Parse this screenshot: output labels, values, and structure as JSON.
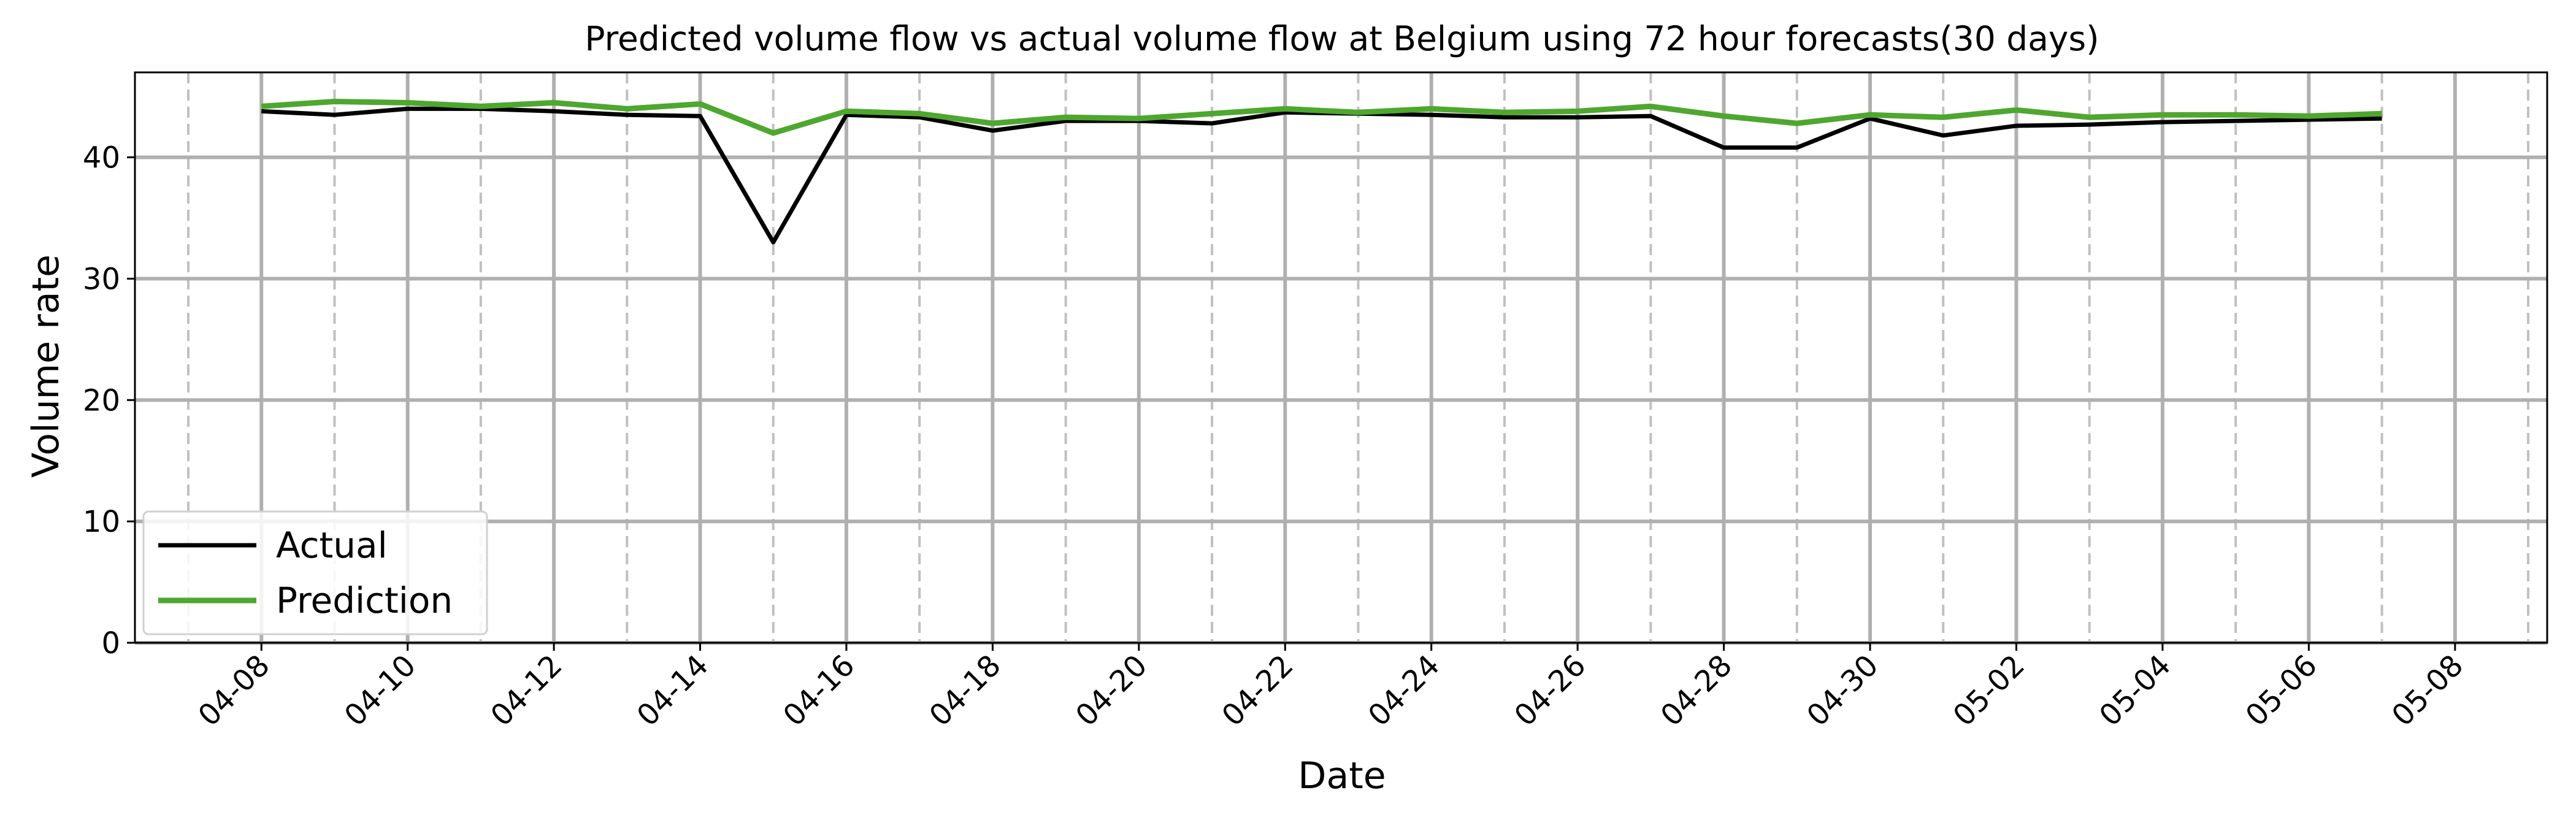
{
  "chart_data": {
    "type": "line",
    "title": "Predicted volume flow vs actual volume flow at Belgium using 72 hour forecasts(30 days)",
    "x_label": "Date",
    "y_label": "Volume rate",
    "x": [
      "04-08",
      "04-09",
      "04-10",
      "04-11",
      "04-12",
      "04-13",
      "04-14",
      "04-15",
      "04-16",
      "04-17",
      "04-18",
      "04-19",
      "04-20",
      "04-21",
      "04-22",
      "04-23",
      "04-24",
      "04-25",
      "04-26",
      "04-27",
      "04-28",
      "04-29",
      "04-30",
      "05-01",
      "05-02",
      "05-03",
      "05-04",
      "05-05",
      "05-06",
      "05-07"
    ],
    "series": [
      {
        "name": "Actual",
        "color": "#000000",
        "values": [
          43.8,
          43.5,
          44.0,
          44.0,
          43.8,
          43.5,
          43.4,
          33.0,
          43.5,
          43.3,
          42.2,
          43.0,
          43.0,
          42.8,
          43.7,
          43.6,
          43.5,
          43.3,
          43.3,
          43.4,
          40.8,
          40.8,
          43.2,
          41.8,
          42.6,
          42.7,
          42.9,
          43.0,
          43.1,
          43.2
        ]
      },
      {
        "name": "Prediction",
        "color": "#4ea72e",
        "values": [
          44.2,
          44.6,
          44.5,
          44.2,
          44.5,
          44.0,
          44.4,
          42.0,
          43.8,
          43.6,
          42.8,
          43.3,
          43.2,
          43.6,
          44.0,
          43.7,
          44.0,
          43.7,
          43.8,
          44.2,
          43.4,
          42.8,
          43.5,
          43.3,
          43.9,
          43.3,
          43.5,
          43.5,
          43.4,
          43.6
        ]
      }
    ],
    "xlim": [
      "04-07",
      "05-09"
    ],
    "xticks": [
      "04-08",
      "04-10",
      "04-12",
      "04-14",
      "04-16",
      "04-18",
      "04-20",
      "04-22",
      "04-24",
      "04-26",
      "04-28",
      "04-30",
      "05-02",
      "05-04",
      "05-06",
      "05-08"
    ],
    "xminorticks": [
      "04-07",
      "04-09",
      "04-11",
      "04-13",
      "04-15",
      "04-17",
      "04-19",
      "04-21",
      "04-23",
      "04-25",
      "04-27",
      "04-29",
      "05-01",
      "05-03",
      "05-05",
      "05-07",
      "05-09"
    ],
    "ylim": [
      0,
      47
    ],
    "yticks": [
      0,
      10,
      20,
      30,
      40
    ],
    "grid": true,
    "legend": "lower left"
  }
}
